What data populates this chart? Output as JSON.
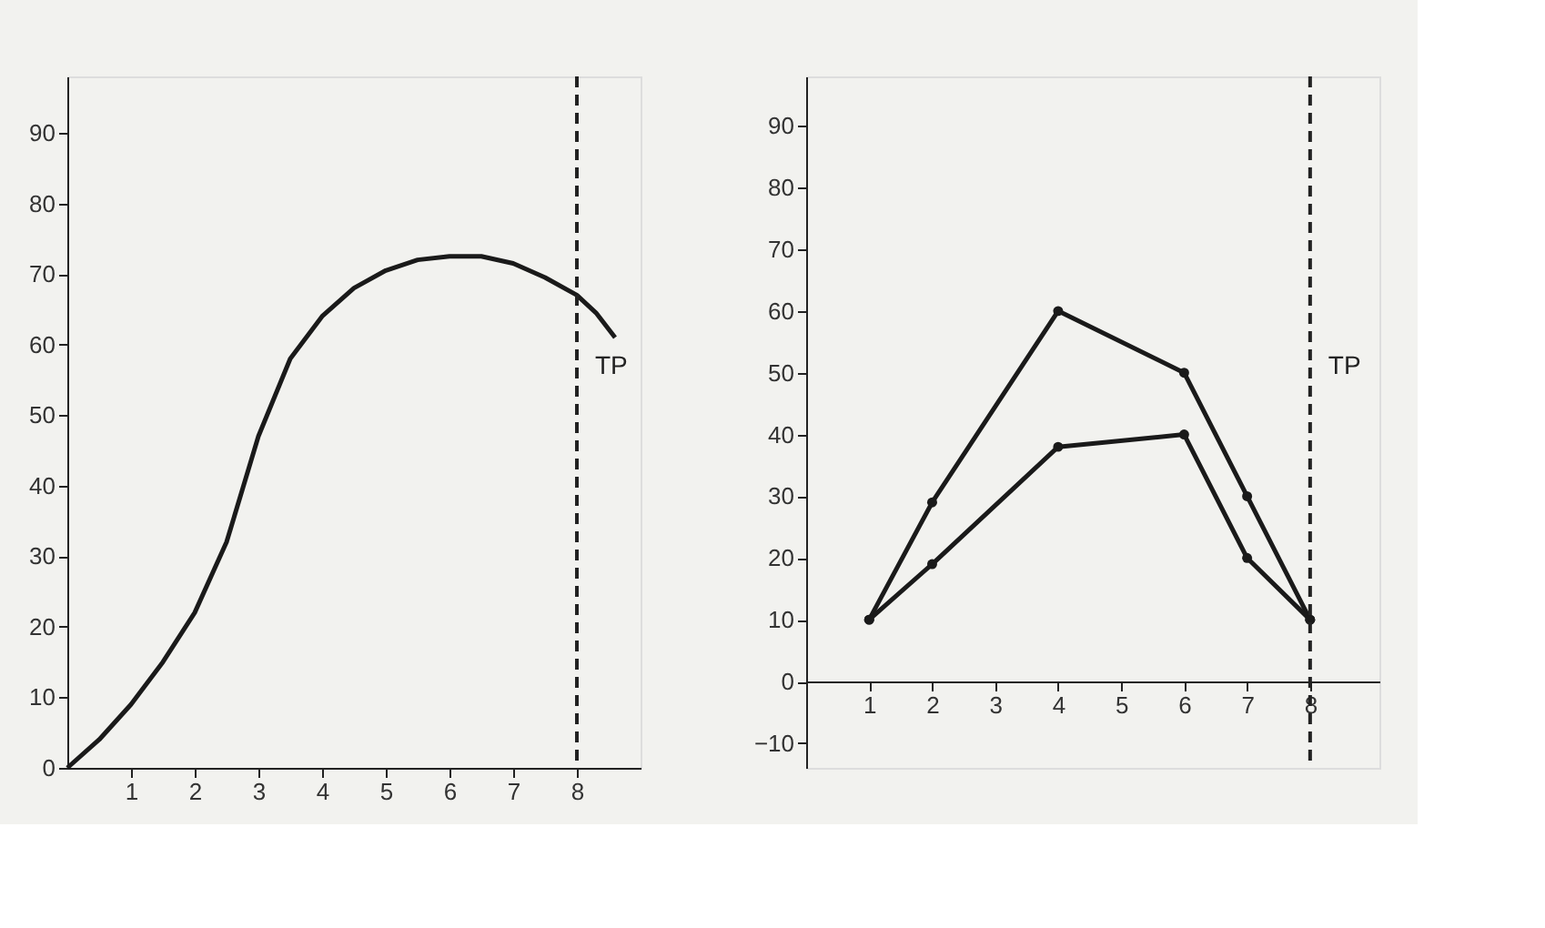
{
  "chart_data": [
    {
      "type": "line",
      "x": [
        0,
        0.5,
        1,
        1.5,
        2,
        2.5,
        3,
        3.5,
        4,
        4.5,
        5,
        5.5,
        6,
        6.5,
        7,
        7.5,
        8,
        8.3,
        8.6
      ],
      "series": [
        {
          "color": "#1a1a1a",
          "values": [
            0,
            4,
            9,
            15,
            22,
            32,
            47,
            58,
            64,
            68,
            70.5,
            72,
            72.5,
            72.5,
            71.5,
            69.5,
            67,
            64.5,
            61
          ]
        }
      ],
      "xlim": [
        0,
        9
      ],
      "ylim": [
        0,
        98
      ],
      "xticks": [
        1,
        2,
        3,
        4,
        5,
        6,
        7,
        8
      ],
      "yticks": [
        0,
        10,
        20,
        30,
        40,
        50,
        60,
        70,
        80,
        90
      ],
      "ref_lines": [
        {
          "axis": "x",
          "value": 8,
          "label": "TP",
          "line_style": "dashed"
        }
      ],
      "grid": false,
      "marker": "none",
      "line_style": "solid"
    },
    {
      "type": "line",
      "x": [
        1,
        2,
        4,
        6,
        7,
        8
      ],
      "series": [
        {
          "color": "#1a1a1a",
          "values": [
            10,
            29,
            60,
            50,
            30,
            10
          ]
        },
        {
          "color": "#1a1a1a",
          "values": [
            10,
            19,
            38,
            40,
            20,
            10
          ]
        }
      ],
      "xlim": [
        0,
        9.1
      ],
      "ylim": [
        -14,
        98
      ],
      "xticks": [
        1,
        2,
        3,
        4,
        5,
        6,
        7,
        8
      ],
      "yticks": [
        -10,
        0,
        10,
        20,
        30,
        40,
        50,
        60,
        70,
        80,
        90
      ],
      "ref_lines": [
        {
          "axis": "x",
          "value": 8,
          "label": "TP",
          "line_style": "dashed"
        }
      ],
      "grid": false,
      "marker": "circle",
      "line_style": "solid"
    }
  ]
}
